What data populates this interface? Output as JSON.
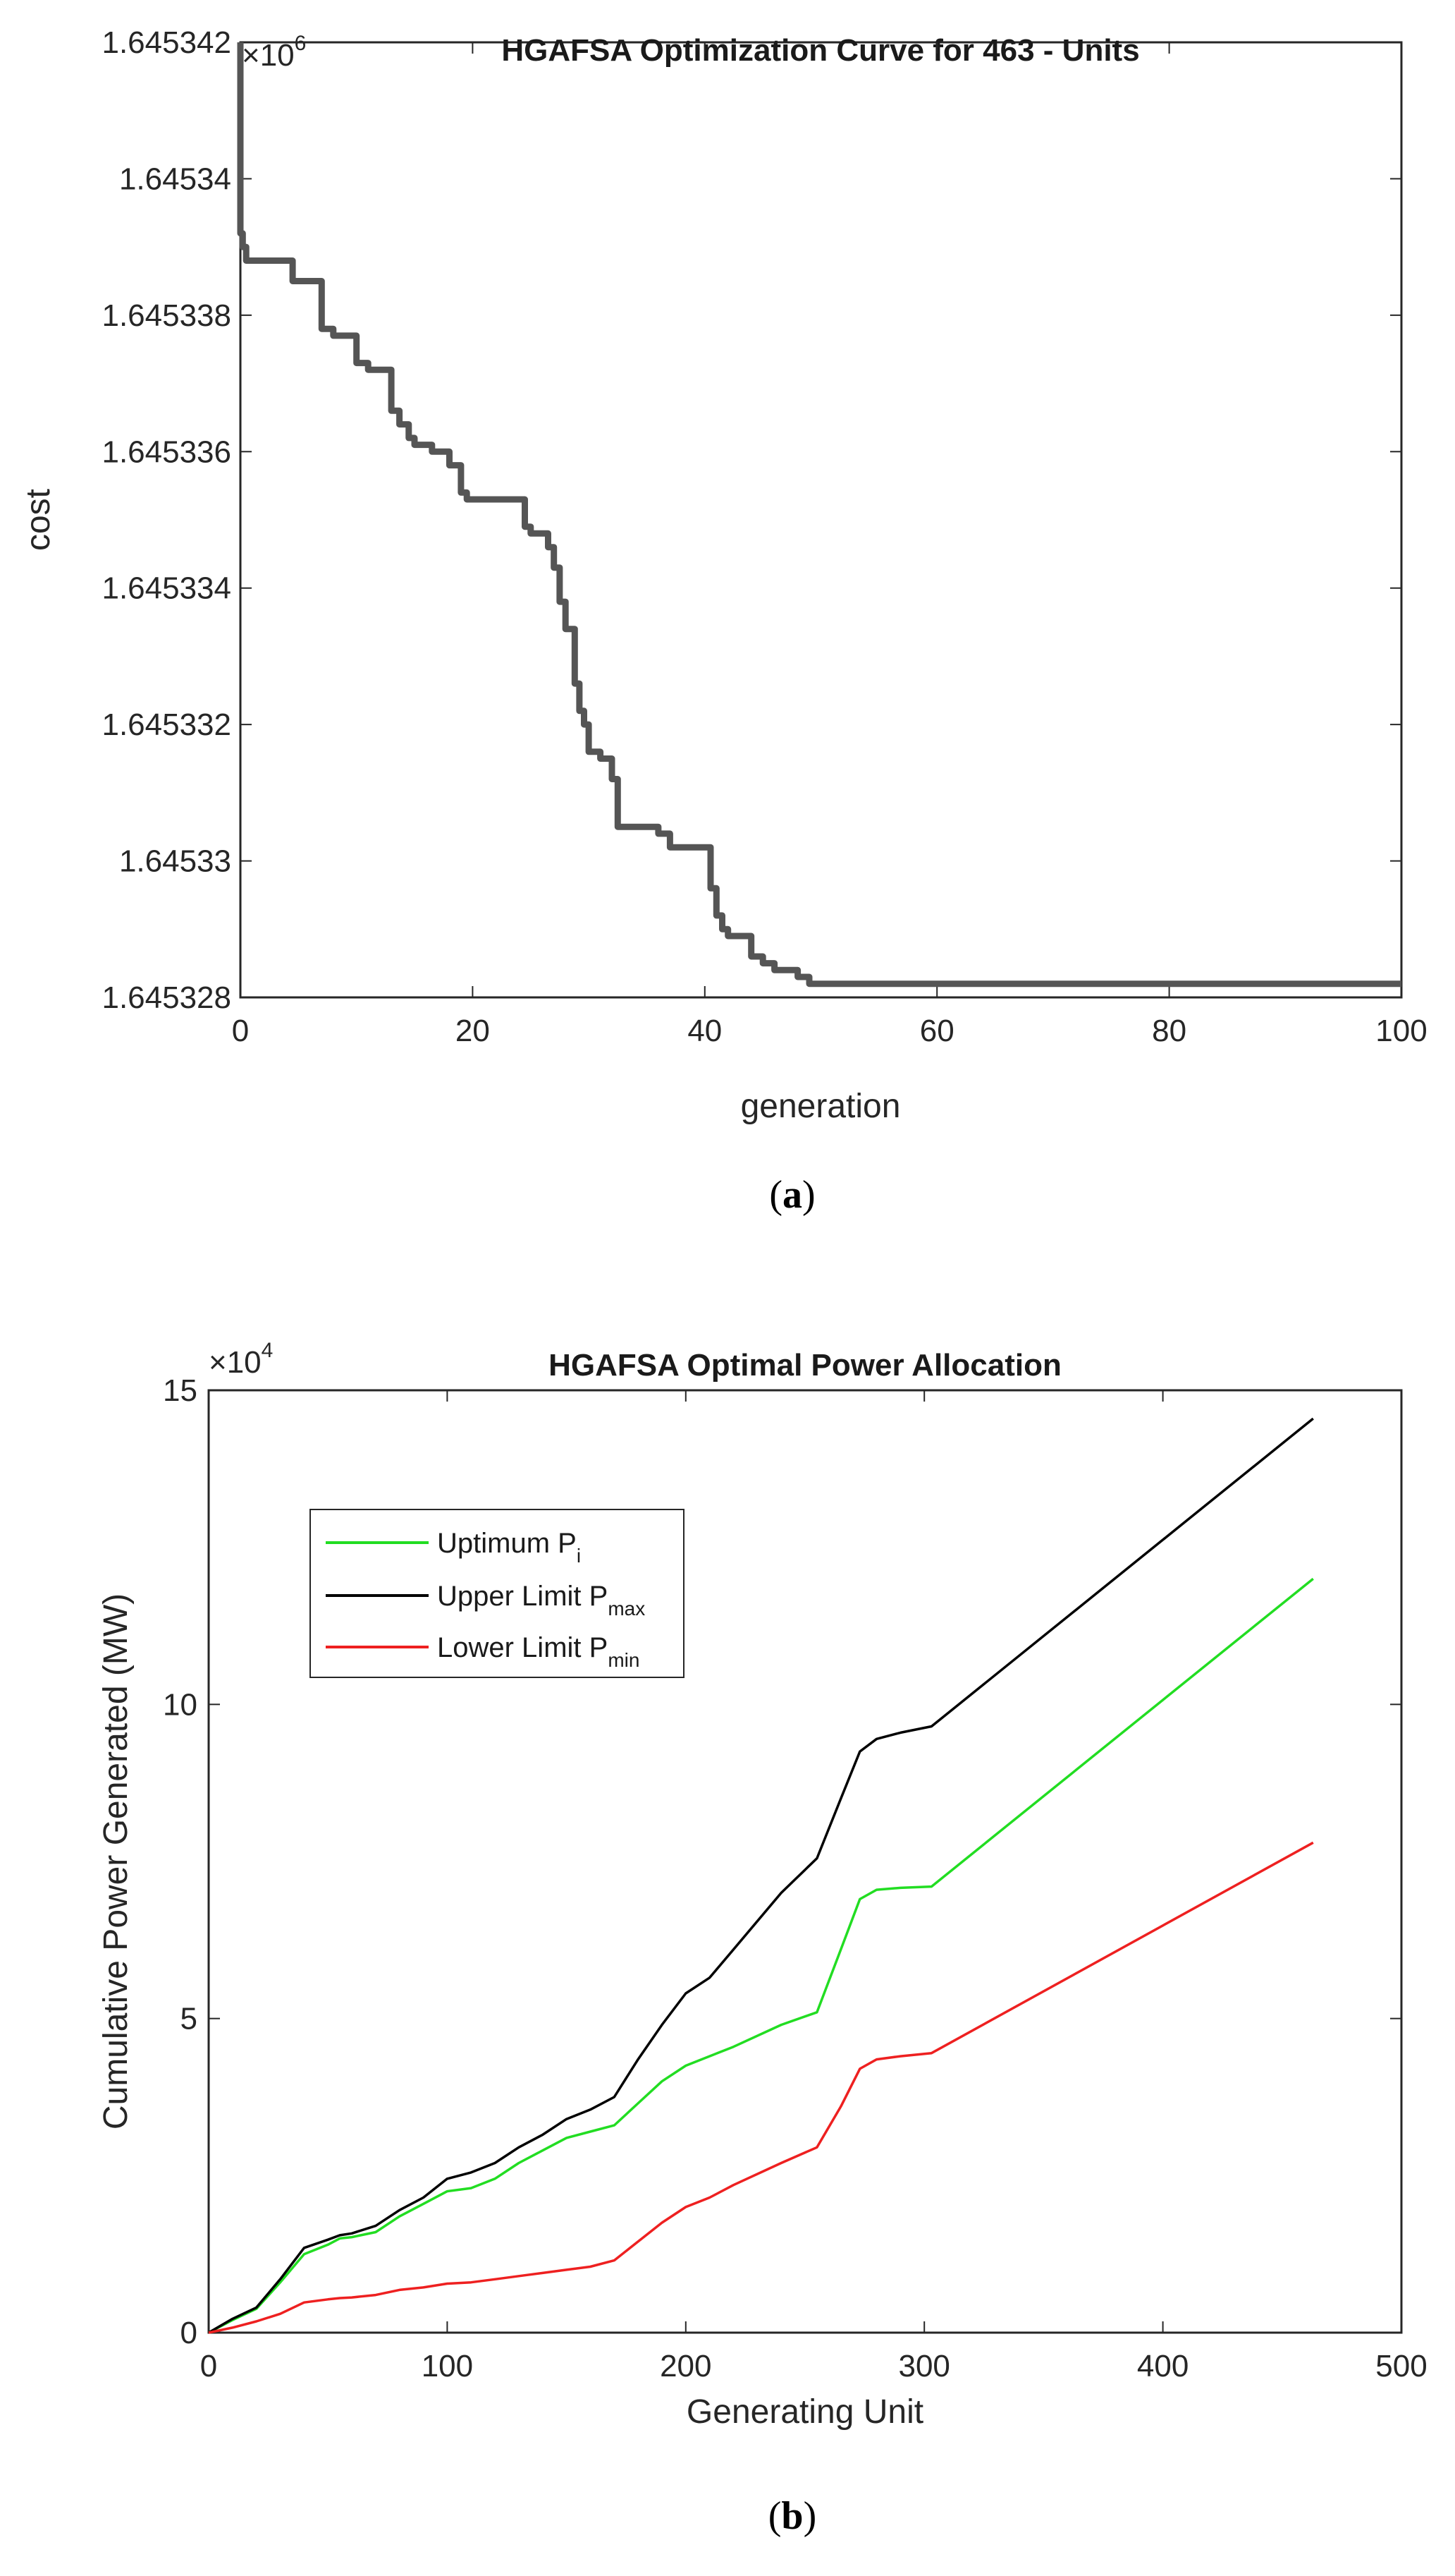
{
  "chart_data": [
    {
      "panel": "a",
      "type": "line",
      "title": "HGAFSA Optimization Curve for 463 - Units",
      "xlabel": "generation",
      "ylabel": "cost",
      "xlim": [
        0,
        100
      ],
      "ylim": [
        1.645328,
        1.645342
      ],
      "exponent_base": "×10",
      "exponent_power": "6",
      "xticks": [
        0,
        20,
        40,
        60,
        80,
        100
      ],
      "xtick_labels": [
        "0",
        "20",
        "40",
        "60",
        "80",
        "100"
      ],
      "yticks": [
        1.645328,
        1.64533,
        1.645332,
        1.645334,
        1.645336,
        1.645338,
        1.64534,
        1.645342
      ],
      "ytick_labels": [
        "1.645328",
        "1.64533",
        "1.645332",
        "1.645334",
        "1.645336",
        "1.645338",
        "1.64534",
        "1.645342"
      ],
      "series": [
        {
          "name": "cost",
          "color": "#555555",
          "x": [
            0,
            0,
            0.2,
            0.2,
            0.5,
            0.5,
            4.5,
            4.5,
            7,
            7,
            8,
            8,
            10,
            10,
            11,
            11,
            13,
            13,
            13.7,
            13.7,
            14.5,
            14.5,
            15,
            15,
            16.5,
            16.5,
            18,
            18,
            19,
            19,
            19.5,
            19.5,
            24.5,
            24.5,
            25,
            25,
            26.5,
            26.5,
            27,
            27,
            27.5,
            27.5,
            28,
            28,
            28.8,
            28.8,
            29.2,
            29.2,
            29.6,
            29.6,
            30,
            30,
            31,
            31,
            32,
            32,
            32.5,
            32.5,
            36,
            36,
            37,
            37,
            40.5,
            40.5,
            41,
            41,
            41.5,
            41.5,
            42,
            42,
            44,
            44,
            45,
            45,
            46,
            46,
            48,
            48,
            49,
            49,
            100
          ],
          "y": [
            1.645342,
            1.6453392,
            1.6453392,
            1.645339,
            1.645339,
            1.6453388,
            1.6453388,
            1.6453385,
            1.6453385,
            1.6453378,
            1.6453378,
            1.6453377,
            1.6453377,
            1.6453373,
            1.6453373,
            1.6453372,
            1.6453372,
            1.6453366,
            1.6453366,
            1.6453364,
            1.6453364,
            1.6453362,
            1.6453362,
            1.6453361,
            1.6453361,
            1.645336,
            1.645336,
            1.6453358,
            1.6453358,
            1.6453354,
            1.6453354,
            1.6453353,
            1.6453353,
            1.6453349,
            1.6453349,
            1.6453348,
            1.6453348,
            1.6453346,
            1.6453346,
            1.6453343,
            1.6453343,
            1.6453338,
            1.6453338,
            1.6453334,
            1.6453334,
            1.6453326,
            1.6453326,
            1.6453322,
            1.6453322,
            1.645332,
            1.645332,
            1.6453316,
            1.6453316,
            1.6453315,
            1.6453315,
            1.6453312,
            1.6453312,
            1.6453305,
            1.6453305,
            1.6453304,
            1.6453304,
            1.6453302,
            1.6453302,
            1.6453296,
            1.6453296,
            1.6453292,
            1.6453292,
            1.645329,
            1.645329,
            1.6453289,
            1.6453289,
            1.6453286,
            1.6453286,
            1.6453285,
            1.6453285,
            1.6453284,
            1.6453284,
            1.6453283,
            1.6453283,
            1.6453282,
            1.6453282
          ]
        }
      ]
    },
    {
      "panel": "b",
      "type": "line",
      "title": "HGAFSA Optimal Power Allocation",
      "xlabel": "Generating Unit",
      "ylabel": "Cumulative Power Generated (MW)",
      "xlim": [
        0,
        500
      ],
      "ylim": [
        0,
        150000
      ],
      "exponent_base": "×10",
      "exponent_power": "4",
      "xticks": [
        0,
        100,
        200,
        300,
        400,
        500
      ],
      "xtick_labels": [
        "0",
        "100",
        "200",
        "300",
        "400",
        "500"
      ],
      "yticks": [
        0,
        50000,
        100000,
        150000
      ],
      "ytick_labels": [
        "0",
        "5",
        "10",
        "15"
      ],
      "legend_position": "upper-left",
      "series": [
        {
          "name": "Uptimum P",
          "subscript": "i",
          "color": "#22dd22",
          "x": [
            0,
            10,
            20,
            30,
            40,
            50,
            55,
            60,
            70,
            80,
            90,
            100,
            110,
            120,
            130,
            140,
            150,
            160,
            170,
            180,
            190,
            200,
            210,
            220,
            240,
            255,
            265,
            273,
            280,
            290,
            303,
            463
          ],
          "y": [
            0,
            2000,
            3800,
            8000,
            12500,
            14000,
            15000,
            15200,
            16000,
            18500,
            20500,
            22500,
            23000,
            24500,
            27000,
            29000,
            31000,
            32000,
            33000,
            36500,
            40000,
            42500,
            44000,
            45500,
            49000,
            51000,
            61000,
            69000,
            70500,
            70800,
            71000,
            120000
          ]
        },
        {
          "name": "Upper Limit P",
          "subscript": "max",
          "color": "#000000",
          "x": [
            0,
            10,
            20,
            30,
            40,
            50,
            55,
            60,
            70,
            80,
            90,
            100,
            110,
            120,
            130,
            140,
            150,
            160,
            170,
            180,
            190,
            200,
            210,
            220,
            240,
            255,
            265,
            273,
            280,
            290,
            303,
            463
          ],
          "y": [
            0,
            2200,
            4000,
            8500,
            13500,
            14800,
            15500,
            15800,
            17000,
            19500,
            21500,
            24500,
            25500,
            27000,
            29500,
            31500,
            34000,
            35500,
            37500,
            43500,
            49000,
            54000,
            56500,
            61000,
            70000,
            75500,
            85000,
            92500,
            94500,
            95500,
            96500,
            145500
          ]
        },
        {
          "name": "Lower Limit P",
          "subscript": "min",
          "color": "#ee2020",
          "x": [
            0,
            10,
            20,
            30,
            40,
            50,
            55,
            60,
            70,
            80,
            90,
            100,
            110,
            120,
            130,
            140,
            150,
            160,
            170,
            180,
            190,
            200,
            210,
            220,
            240,
            255,
            265,
            273,
            280,
            290,
            303,
            463
          ],
          "y": [
            0,
            800,
            1800,
            3000,
            4800,
            5300,
            5500,
            5600,
            6000,
            6800,
            7200,
            7800,
            8000,
            8500,
            9000,
            9500,
            10000,
            10500,
            11500,
            14500,
            17500,
            20000,
            21500,
            23500,
            27000,
            29500,
            36000,
            42000,
            43500,
            44000,
            44500,
            78000
          ]
        }
      ]
    }
  ],
  "captions": {
    "a": "a",
    "b": "b"
  }
}
